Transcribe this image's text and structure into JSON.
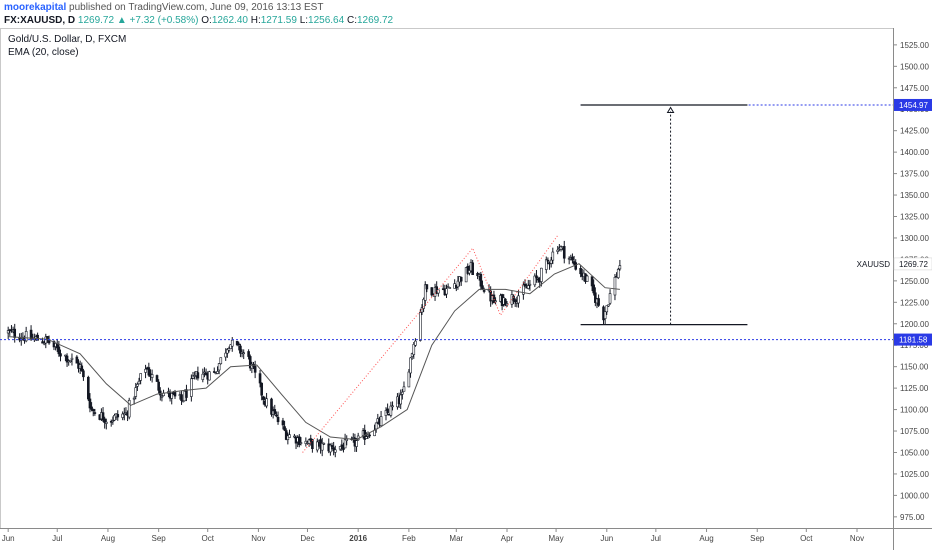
{
  "header": {
    "author": "moorekapital",
    "published_text": "published on TradingView.com, June 09, 2016 13:13 EST",
    "symbol": "FX:XAUUSD, D",
    "last": "1269.72",
    "change": "+7.32 (+0.58%)",
    "open_label": "O:",
    "open": "1262.40",
    "high_label": "H:",
    "high": "1271.59",
    "low_label": "L:",
    "low": "1256.64",
    "close_label": "C:",
    "close": "1269.72"
  },
  "legend": {
    "title": "Gold/U.S. Dollar, D, FXCM",
    "indicator": "EMA (20, close)"
  },
  "chart_data": {
    "type": "candlestick",
    "ylim": [
      962,
      1540
    ],
    "y_ticks": [
      975,
      1000,
      1025,
      1050,
      1075,
      1100,
      1125,
      1150,
      1175,
      1200,
      1225,
      1250,
      1275,
      1300,
      1325,
      1350,
      1375,
      1400,
      1425,
      1450,
      1475,
      1500,
      1525
    ],
    "x_ticks": [
      "Jun",
      "Jul",
      "Aug",
      "Sep",
      "Oct",
      "Nov",
      "Dec",
      "2016",
      "Feb",
      "Mar",
      "Apr",
      "May",
      "Jun",
      "Jul",
      "Aug",
      "Sep",
      "Oct",
      "Nov"
    ],
    "symbol_label": "XAUUSD",
    "last_price_label": "1269.72",
    "last_price": 1269.72,
    "target_label": "1454.97",
    "target_price": 1454.97,
    "support_label": "1181.58",
    "support_price": 1181.58,
    "price_path": [
      {
        "t": "2015-06-01",
        "p": 1190
      },
      {
        "t": "2015-06-15",
        "p": 1183
      },
      {
        "t": "2015-06-25",
        "p": 1180
      },
      {
        "t": "2015-07-02",
        "p": 1168
      },
      {
        "t": "2015-07-15",
        "p": 1150
      },
      {
        "t": "2015-07-22",
        "p": 1100
      },
      {
        "t": "2015-08-01",
        "p": 1088
      },
      {
        "t": "2015-08-12",
        "p": 1095
      },
      {
        "t": "2015-08-24",
        "p": 1150
      },
      {
        "t": "2015-09-03",
        "p": 1120
      },
      {
        "t": "2015-09-15",
        "p": 1110
      },
      {
        "t": "2015-09-25",
        "p": 1142
      },
      {
        "t": "2015-10-05",
        "p": 1142
      },
      {
        "t": "2015-10-14",
        "p": 1178
      },
      {
        "t": "2015-10-25",
        "p": 1163
      },
      {
        "t": "2015-11-05",
        "p": 1110
      },
      {
        "t": "2015-11-18",
        "p": 1072
      },
      {
        "t": "2015-12-02",
        "p": 1060
      },
      {
        "t": "2015-12-17",
        "p": 1055
      },
      {
        "t": "2015-12-31",
        "p": 1062
      },
      {
        "t": "2016-01-14",
        "p": 1085
      },
      {
        "t": "2016-01-28",
        "p": 1115
      },
      {
        "t": "2016-02-11",
        "p": 1240
      },
      {
        "t": "2016-02-25",
        "p": 1240
      },
      {
        "t": "2016-03-10",
        "p": 1265
      },
      {
        "t": "2016-03-24",
        "p": 1225
      },
      {
        "t": "2016-04-07",
        "p": 1232
      },
      {
        "t": "2016-04-21",
        "p": 1255
      },
      {
        "t": "2016-05-02",
        "p": 1292
      },
      {
        "t": "2016-05-12",
        "p": 1270
      },
      {
        "t": "2016-05-20",
        "p": 1250
      },
      {
        "t": "2016-05-30",
        "p": 1210
      },
      {
        "t": "2016-06-09",
        "p": 1269.72
      }
    ],
    "ema_path": [
      {
        "t": "2015-06-01",
        "p": 1185
      },
      {
        "t": "2015-06-25",
        "p": 1182
      },
      {
        "t": "2015-07-15",
        "p": 1165
      },
      {
        "t": "2015-07-31",
        "p": 1130
      },
      {
        "t": "2015-08-15",
        "p": 1105
      },
      {
        "t": "2015-08-31",
        "p": 1118
      },
      {
        "t": "2015-09-15",
        "p": 1122
      },
      {
        "t": "2015-09-30",
        "p": 1125
      },
      {
        "t": "2015-10-15",
        "p": 1150
      },
      {
        "t": "2015-10-31",
        "p": 1152
      },
      {
        "t": "2015-11-15",
        "p": 1118
      },
      {
        "t": "2015-11-30",
        "p": 1085
      },
      {
        "t": "2015-12-15",
        "p": 1068
      },
      {
        "t": "2015-12-31",
        "p": 1065
      },
      {
        "t": "2016-01-15",
        "p": 1080
      },
      {
        "t": "2016-01-31",
        "p": 1100
      },
      {
        "t": "2016-02-15",
        "p": 1175
      },
      {
        "t": "2016-02-29",
        "p": 1215
      },
      {
        "t": "2016-03-15",
        "p": 1240
      },
      {
        "t": "2016-03-31",
        "p": 1240
      },
      {
        "t": "2016-04-15",
        "p": 1235
      },
      {
        "t": "2016-04-30",
        "p": 1258
      },
      {
        "t": "2016-05-15",
        "p": 1270
      },
      {
        "t": "2016-05-31",
        "p": 1242
      },
      {
        "t": "2016-06-09",
        "p": 1240
      }
    ],
    "red_trend_path": [
      {
        "t": "2015-11-28",
        "p": 1050
      },
      {
        "t": "2016-03-11",
        "p": 1288
      },
      {
        "t": "2016-03-28",
        "p": 1210
      },
      {
        "t": "2016-05-02",
        "p": 1303
      }
    ],
    "flag_top": {
      "start": "2016-05-16",
      "end": "2016-08-26",
      "p": 1454.97
    },
    "flag_bottom": {
      "start": "2016-05-16",
      "end": "2016-08-26",
      "p": 1199
    },
    "measure_arrow": {
      "t": "2016-07-10",
      "from": 1199,
      "to": 1452
    },
    "colors": {
      "candle": "#131722",
      "ema": "#555555",
      "red_trend": "#ff5252",
      "support": "#2a3ae6",
      "target_line": "#2a3ae6",
      "label_bg": "#2a3ae6",
      "flag": "#131722",
      "axis_text": "#444444"
    }
  }
}
